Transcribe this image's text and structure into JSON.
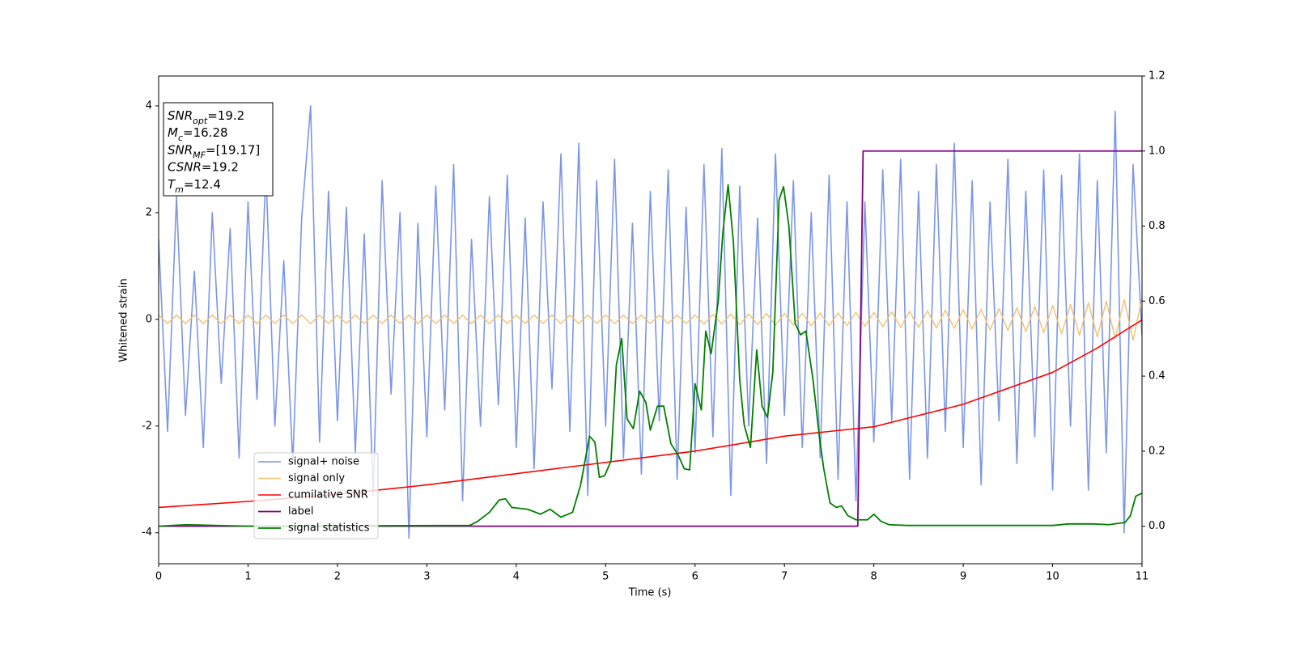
{
  "chart_data": {
    "type": "line",
    "xlabel": "Time (s)",
    "ylabel": "Whitened strain",
    "xlim": [
      0,
      11
    ],
    "xticks": [
      0,
      1,
      2,
      3,
      4,
      5,
      6,
      7,
      8,
      9,
      10,
      11
    ],
    "ylim": [
      -4.58,
      4.56
    ],
    "yticks": [
      -4,
      -2,
      0,
      2,
      4
    ],
    "y2lim": [
      -0.1,
      1.2
    ],
    "y2ticks": [
      {
        "value": 0,
        "label": "0.0"
      },
      {
        "value": 0.2,
        "label": "0.2"
      },
      {
        "value": 0.4,
        "label": "0.4"
      },
      {
        "value": 0.6,
        "label": "0.6"
      },
      {
        "value": 0.8,
        "label": "0.8"
      },
      {
        "value": 1,
        "label": "1.0"
      },
      {
        "value": 1.2,
        "label": "1.2"
      }
    ],
    "legend": "lower left",
    "annotation": [
      {
        "main": "SNR",
        "sub": "opt",
        "rest": "=19.2"
      },
      {
        "main": "M",
        "sub": "c",
        "rest": "=16.28"
      },
      {
        "main": "SNR",
        "sub": "MF",
        "rest": "=[19.17]"
      },
      {
        "main": "CSNR",
        "sub": null,
        "rest": "=19.2"
      },
      {
        "main": "T",
        "sub": "m",
        "rest": "=12.4"
      }
    ],
    "x": [
      0,
      0.1,
      0.2,
      0.3,
      0.4,
      0.5,
      0.6,
      0.7,
      0.8,
      0.9,
      1,
      1.1,
      1.2,
      1.3,
      1.4,
      1.5,
      1.6,
      1.7,
      1.8,
      1.9,
      2,
      2.1,
      2.2,
      2.3,
      2.4,
      2.5,
      2.6,
      2.7,
      2.8,
      2.9,
      3,
      3.1,
      3.2,
      3.3,
      3.4,
      3.5,
      3.6,
      3.7,
      3.8,
      3.9,
      4,
      4.1,
      4.2,
      4.3,
      4.4,
      4.5,
      4.6,
      4.7,
      4.8,
      4.9,
      5,
      5.1,
      5.2,
      5.3,
      5.4,
      5.5,
      5.6,
      5.7,
      5.8,
      5.9,
      6,
      6.1,
      6.2,
      6.3,
      6.4,
      6.5,
      6.6,
      6.7,
      6.8,
      6.9,
      7,
      7.1,
      7.2,
      7.3,
      7.4,
      7.5,
      7.6,
      7.7,
      7.8,
      7.9,
      8,
      8.1,
      8.2,
      8.3,
      8.4,
      8.5,
      8.6,
      8.7,
      8.8,
      8.9,
      9,
      9.1,
      9.2,
      9.3,
      9.4,
      9.5,
      9.6,
      9.7,
      9.8,
      9.9,
      10,
      10.1,
      10.2,
      10.3,
      10.4,
      10.5,
      10.6,
      10.7,
      10.8,
      10.9,
      11
    ],
    "series": [
      {
        "name": "signal+ noise",
        "color": "#7b96e8",
        "width": 1.6,
        "values": [
          1.5,
          -2.1,
          2.3,
          -1.8,
          0.9,
          -2.4,
          2.0,
          -1.2,
          1.7,
          -2.6,
          2.2,
          -1.5,
          2.8,
          -2.0,
          1.1,
          -2.7,
          1.9,
          4.0,
          -2.3,
          2.4,
          -1.9,
          2.1,
          -2.5,
          1.6,
          -3.3,
          2.6,
          -1.4,
          2.0,
          -4.1,
          1.8,
          -2.2,
          2.5,
          -1.7,
          2.9,
          -3.4,
          1.5,
          -2.0,
          2.3,
          -1.6,
          2.7,
          -2.4,
          1.9,
          -2.8,
          2.2,
          -1.3,
          3.1,
          -2.1,
          3.3,
          -3.3,
          2.6,
          -2.0,
          3.0,
          -2.6,
          1.8,
          -2.9,
          2.4,
          -1.9,
          2.8,
          -3.0,
          2.1,
          -2.5,
          2.9,
          -2.2,
          3.2,
          -3.3,
          2.5,
          -2.0,
          1.9,
          -2.7,
          3.1,
          -1.8,
          2.6,
          -2.4,
          2.0,
          -2.6,
          2.7,
          -3.0,
          2.2,
          -3.4,
          2.2,
          -2.3,
          2.8,
          -1.9,
          3.0,
          -3.0,
          2.4,
          -2.6,
          2.9,
          -2.1,
          3.3,
          -2.4,
          2.6,
          -3.1,
          2.2,
          -1.9,
          3.0,
          -2.7,
          2.4,
          -2.2,
          2.8,
          -3.2,
          2.7,
          -2.0,
          3.1,
          -3.2,
          2.6,
          -2.5,
          3.9,
          -4.0,
          2.9,
          -0.3
        ]
      },
      {
        "name": "signal only",
        "color": "#f5c16c",
        "width": 1.4,
        "values": [
          0.08,
          -0.08,
          0.08,
          -0.08,
          0.08,
          -0.08,
          0.08,
          -0.08,
          0.08,
          -0.08,
          0.08,
          -0.08,
          0.08,
          -0.08,
          0.08,
          -0.08,
          0.08,
          -0.08,
          0.08,
          -0.08,
          0.08,
          -0.08,
          0.08,
          -0.08,
          0.08,
          -0.08,
          0.08,
          -0.08,
          0.08,
          -0.08,
          0.08,
          -0.08,
          0.08,
          -0.08,
          0.08,
          -0.08,
          0.08,
          -0.08,
          0.08,
          -0.08,
          0.08,
          -0.08,
          0.08,
          -0.08,
          0.08,
          -0.08,
          0.08,
          -0.08,
          0.08,
          -0.08,
          0.08,
          -0.08,
          0.08,
          -0.08,
          0.08,
          -0.08,
          0.08,
          -0.08,
          0.08,
          -0.08,
          0.08,
          -0.09,
          0.09,
          -0.09,
          0.1,
          -0.1,
          0.1,
          -0.1,
          0.11,
          -0.11,
          0.11,
          -0.11,
          0.11,
          -0.12,
          0.12,
          -0.12,
          0.12,
          -0.12,
          0.13,
          -0.13,
          0.13,
          -0.14,
          0.14,
          -0.15,
          0.15,
          -0.15,
          0.16,
          -0.16,
          0.17,
          -0.17,
          0.18,
          -0.18,
          0.19,
          -0.2,
          0.2,
          -0.21,
          0.22,
          -0.23,
          0.24,
          -0.25,
          0.26,
          -0.27,
          0.28,
          -0.3,
          0.31,
          -0.33,
          0.34,
          -0.36,
          0.37,
          -0.39,
          0.4
        ]
      },
      {
        "name": "cumilative SNR",
        "color": "#ff0000",
        "width": 1.6,
        "axis": "y2",
        "x": [
          0,
          1,
          2,
          3,
          4,
          5,
          6,
          7,
          8,
          9,
          10,
          10.5,
          11
        ],
        "values": [
          0.05,
          0.066,
          0.085,
          0.11,
          0.14,
          0.17,
          0.2,
          0.24,
          0.265,
          0.325,
          0.41,
          0.475,
          0.55
        ]
      },
      {
        "name": "label",
        "color": "#800080",
        "width": 1.8,
        "axis": "y2",
        "x": [
          0,
          7.82,
          7.88,
          11
        ],
        "values": [
          0,
          0,
          1,
          1
        ]
      },
      {
        "name": "signal statistics",
        "color": "#008000",
        "width": 1.8,
        "axis": "y2",
        "x": [
          0,
          0.31,
          1,
          3.48,
          3.57,
          3.7,
          3.81,
          3.88,
          3.95,
          4.13,
          4.27,
          4.38,
          4.5,
          4.63,
          4.72,
          4.82,
          4.88,
          4.93,
          4.99,
          5.06,
          5.12,
          5.18,
          5.24,
          5.31,
          5.38,
          5.45,
          5.5,
          5.58,
          5.65,
          5.73,
          5.81,
          5.88,
          5.94,
          6,
          6.07,
          6.12,
          6.18,
          6.26,
          6.31,
          6.37,
          6.43,
          6.5,
          6.55,
          6.62,
          6.69,
          6.75,
          6.81,
          6.87,
          6.94,
          6.99,
          7.05,
          7.12,
          7.18,
          7.24,
          7.32,
          7.39,
          7.44,
          7.51,
          7.58,
          7.64,
          7.71,
          7.8,
          7.93,
          8,
          8.08,
          8.17,
          8.37,
          9.09,
          10,
          10.18,
          10.45,
          10.63,
          10.81,
          10.87,
          10.93,
          11
        ],
        "values": [
          0,
          0.004,
          0,
          0.002,
          0.013,
          0.037,
          0.07,
          0.073,
          0.05,
          0.045,
          0.032,
          0.045,
          0.024,
          0.037,
          0.11,
          0.24,
          0.224,
          0.13,
          0.135,
          0.174,
          0.43,
          0.5,
          0.286,
          0.26,
          0.36,
          0.33,
          0.256,
          0.32,
          0.32,
          0.22,
          0.19,
          0.153,
          0.15,
          0.38,
          0.31,
          0.52,
          0.46,
          0.6,
          0.78,
          0.91,
          0.755,
          0.39,
          0.27,
          0.21,
          0.47,
          0.32,
          0.29,
          0.41,
          0.87,
          0.905,
          0.8,
          0.54,
          0.51,
          0.52,
          0.39,
          0.24,
          0.153,
          0.062,
          0.05,
          0.054,
          0.028,
          0.017,
          0.017,
          0.032,
          0.013,
          0.004,
          0.002,
          0.002,
          0.002,
          0.006,
          0.006,
          0.004,
          0.01,
          0.028,
          0.08,
          0.088
        ]
      }
    ]
  }
}
